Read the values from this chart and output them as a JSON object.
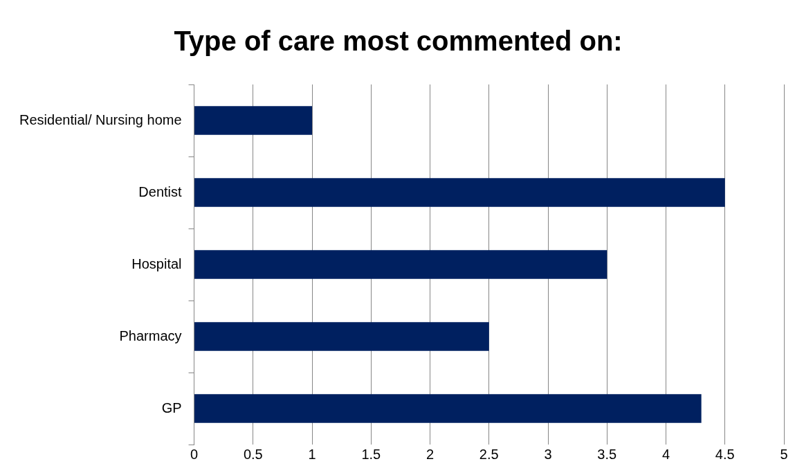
{
  "chart_data": {
    "type": "bar",
    "orientation": "horizontal",
    "title": "Type of care most commented on:",
    "categories": [
      "Residential/ Nursing home",
      "Dentist",
      "Hospital",
      "Pharmacy",
      "GP"
    ],
    "values": [
      1,
      4.5,
      3.5,
      2.5,
      4.3
    ],
    "color": "#002060",
    "xlim": [
      0,
      5
    ],
    "xticks": [
      0,
      0.5,
      1,
      1.5,
      2,
      2.5,
      3,
      3.5,
      4,
      4.5,
      5
    ],
    "grid": "x",
    "legend": false
  }
}
